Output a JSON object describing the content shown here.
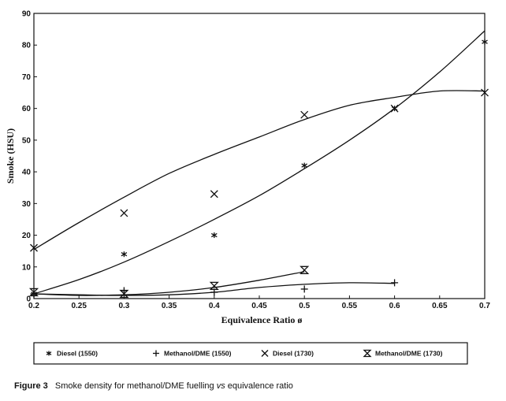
{
  "chart_data": {
    "type": "scatter",
    "title": "",
    "xlabel": "Equivalence Ratio ø",
    "ylabel": "Smoke (HSU)",
    "xlim": [
      0.2,
      0.7
    ],
    "ylim": [
      0,
      90
    ],
    "x_ticks": [
      "0.2",
      "0.25",
      "0.3",
      "0.35",
      "0.4",
      "0.45",
      "0.5",
      "0.55",
      "0.6",
      "0.65",
      "0.7"
    ],
    "y_ticks": [
      "0",
      "10",
      "20",
      "30",
      "40",
      "50",
      "60",
      "70",
      "80",
      "90"
    ],
    "series": [
      {
        "name": "Diesel (1550)",
        "marker": "asterisk",
        "points": [
          [
            0.2,
            1.5
          ],
          [
            0.3,
            14
          ],
          [
            0.4,
            20
          ],
          [
            0.5,
            42
          ],
          [
            0.6,
            60
          ],
          [
            0.7,
            81
          ]
        ],
        "curve": [
          [
            0.2,
            1.5
          ],
          [
            0.25,
            6
          ],
          [
            0.3,
            11.5
          ],
          [
            0.35,
            18
          ],
          [
            0.4,
            25
          ],
          [
            0.45,
            32.5
          ],
          [
            0.5,
            41
          ],
          [
            0.55,
            50
          ],
          [
            0.6,
            60
          ],
          [
            0.65,
            71.5
          ],
          [
            0.7,
            84.5
          ]
        ]
      },
      {
        "name": "Methanol/DME (1550)",
        "marker": "plus",
        "points": [
          [
            0.2,
            1.5
          ],
          [
            0.3,
            2.5
          ],
          [
            0.4,
            2
          ],
          [
            0.5,
            3
          ],
          [
            0.6,
            5
          ]
        ],
        "curve": [
          [
            0.2,
            1.5
          ],
          [
            0.25,
            1.2
          ],
          [
            0.3,
            1
          ],
          [
            0.35,
            1.2
          ],
          [
            0.4,
            2
          ],
          [
            0.45,
            3.5
          ],
          [
            0.5,
            4.5
          ],
          [
            0.55,
            5
          ],
          [
            0.6,
            4.8
          ]
        ]
      },
      {
        "name": "Diesel (1730)",
        "marker": "x",
        "points": [
          [
            0.2,
            16
          ],
          [
            0.3,
            27
          ],
          [
            0.4,
            33
          ],
          [
            0.5,
            58
          ],
          [
            0.6,
            60
          ],
          [
            0.7,
            65
          ]
        ],
        "curve": [
          [
            0.2,
            15.5
          ],
          [
            0.25,
            24
          ],
          [
            0.3,
            32
          ],
          [
            0.35,
            39.5
          ],
          [
            0.4,
            45.5
          ],
          [
            0.45,
            51
          ],
          [
            0.5,
            56.5
          ],
          [
            0.55,
            61
          ],
          [
            0.6,
            63.5
          ],
          [
            0.65,
            65.5
          ],
          [
            0.7,
            65.5
          ]
        ]
      },
      {
        "name": "Methanol/DME (1730)",
        "marker": "hourglass",
        "points": [
          [
            0.2,
            2
          ],
          [
            0.3,
            1.5
          ],
          [
            0.4,
            4
          ],
          [
            0.5,
            9
          ]
        ],
        "curve": [
          [
            0.2,
            1.5
          ],
          [
            0.25,
            1
          ],
          [
            0.3,
            1.2
          ],
          [
            0.35,
            2
          ],
          [
            0.4,
            3.5
          ],
          [
            0.45,
            5.8
          ],
          [
            0.5,
            8.5
          ]
        ]
      }
    ]
  },
  "caption": {
    "label": "Figure 3",
    "text_before": "Smoke density for methanol/DME fuelling",
    "vs": "vs",
    "text_after": "equivalence ratio"
  }
}
